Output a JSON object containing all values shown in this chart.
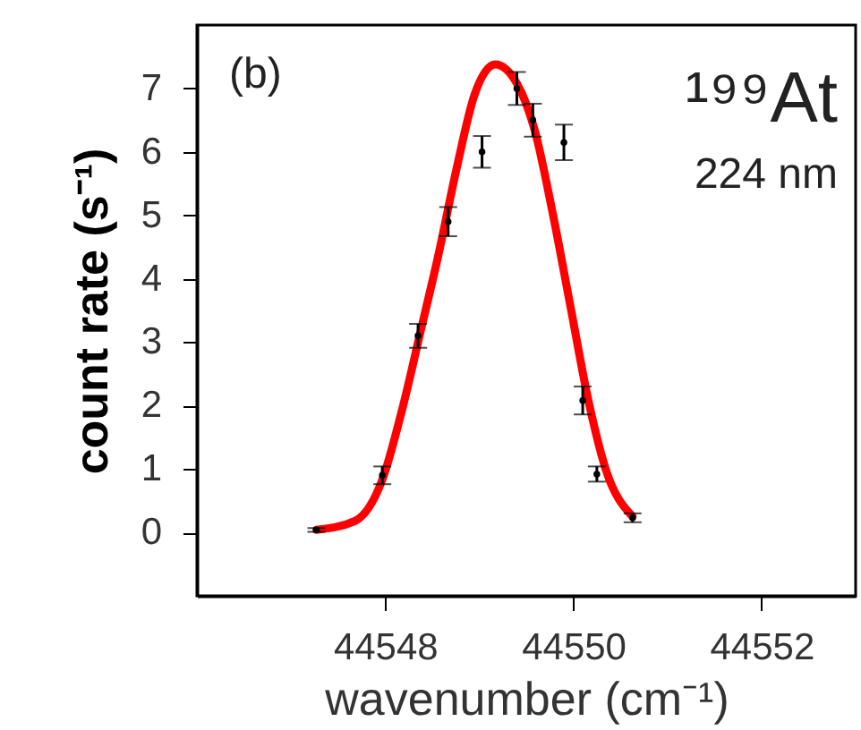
{
  "chart_data": {
    "type": "scatter",
    "xlabel": "wavenumber (cm⁻¹)",
    "ylabel": "count rate (s⁻¹)",
    "annotations": [
      "(b)",
      "¹⁹⁹At",
      "224 nm"
    ],
    "xlim": [
      44546,
      44553
    ],
    "xticks": [
      44548,
      44550,
      44552
    ],
    "ylim": [
      -1,
      8
    ],
    "yticks": [
      0,
      1,
      2,
      3,
      4,
      5,
      6,
      7
    ],
    "grid": false,
    "series": [
      {
        "color": "#000000",
        "marker": "circle",
        "x": [
          44547.27,
          44547.97,
          44548.35,
          44548.67,
          44549.03,
          44549.4,
          44549.57,
          44549.9,
          44550.1,
          44550.25,
          44550.63
        ],
        "values": [
          0.04,
          0.9,
          3.1,
          4.9,
          6.0,
          7.0,
          6.5,
          6.15,
          2.08,
          0.92,
          0.23
        ],
        "errors": [
          0.03,
          0.14,
          0.19,
          0.23,
          0.25,
          0.26,
          0.26,
          0.28,
          0.22,
          0.12,
          0.07
        ]
      },
      {
        "type": "line",
        "color": "#ff0000",
        "line_style": "solid",
        "x": [
          44547.27,
          44547.68,
          44547.97,
          44548.19,
          44548.38,
          44548.57,
          44548.76,
          44548.95,
          44549.17,
          44549.4,
          44549.59,
          44549.78,
          44549.97,
          44550.16,
          44550.35,
          44550.63
        ],
        "values": [
          0.04,
          0.18,
          0.83,
          1.99,
          3.19,
          4.4,
          5.74,
          6.9,
          7.38,
          7.08,
          6.34,
          5.04,
          3.56,
          2.08,
          0.97,
          0.25
        ]
      }
    ]
  }
}
